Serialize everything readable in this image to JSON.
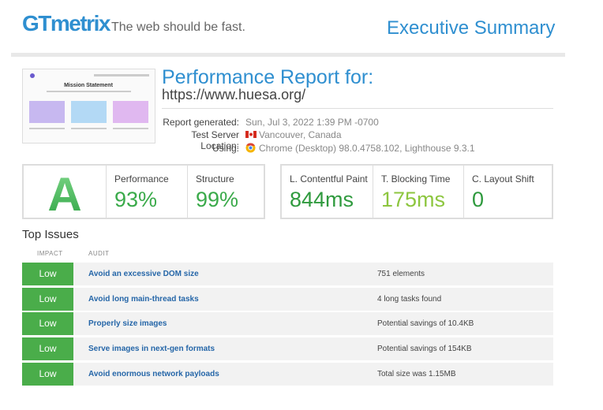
{
  "header": {
    "logo": "GTmetrix",
    "tagline": "The web should be fast.",
    "page_title": "Executive Summary"
  },
  "report": {
    "thumbnail_title": "Mission Statement",
    "heading": "Performance Report for:",
    "url": "https://www.huesa.org/",
    "info": [
      {
        "label": "Report generated:",
        "value": "Sun, Jul 3, 2022 1:39 PM -0700"
      },
      {
        "label": "Test Server Location:",
        "value": "Vancouver, Canada"
      },
      {
        "label": "Using:",
        "value": "Chrome (Desktop) 98.0.4758.102, Lighthouse 9.3.1"
      }
    ]
  },
  "grade": {
    "letter": "A",
    "scores": [
      {
        "label": "Performance",
        "value": "93%"
      },
      {
        "label": "Structure",
        "value": "99%"
      }
    ]
  },
  "web_vitals": [
    {
      "label": "L. Contentful Paint",
      "value": "844ms"
    },
    {
      "label": "T. Blocking Time",
      "value": "175ms"
    },
    {
      "label": "C. Layout Shift",
      "value": "0"
    }
  ],
  "top_issues": {
    "title": "Top Issues",
    "columns": [
      "IMPACT",
      "AUDIT"
    ],
    "rows": [
      {
        "impact": "Low",
        "audit": "Avoid an excessive DOM size",
        "detail": "751 elements"
      },
      {
        "impact": "Low",
        "audit": "Avoid long main-thread tasks",
        "detail": "4 long tasks found"
      },
      {
        "impact": "Low",
        "audit": "Properly size images",
        "detail": "Potential savings of 10.4KB"
      },
      {
        "impact": "Low",
        "audit": "Serve images in next-gen formats",
        "detail": "Potential savings of 154KB"
      },
      {
        "impact": "Low",
        "audit": "Avoid enormous network payloads",
        "detail": "Total size was 1.15MB"
      }
    ]
  }
}
